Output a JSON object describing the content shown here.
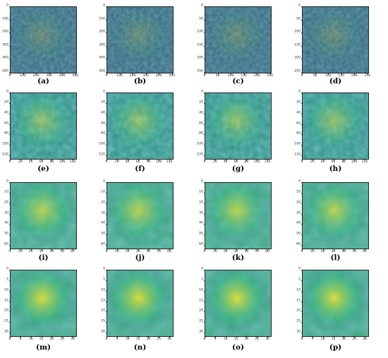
{
  "figure": {
    "rows": [
      {
        "ticks": [
          "0",
          "100",
          "200",
          "300",
          "400",
          "500"
        ],
        "range": 512,
        "blur": 0.3,
        "panels": [
          {
            "label": "(a)",
            "yticks": [
              "0",
              "100",
              "200",
              "300",
              "400",
              "500"
            ]
          },
          {
            "label": "(b)",
            "yticks": [
              "0",
              "100",
              "200",
              "300",
              "400",
              "500"
            ]
          },
          {
            "label": "(c)",
            "xticks": [
              "0",
              "50",
              "100",
              "150",
              "200",
              "250"
            ],
            "yticks": [
              "0",
              "50",
              "100",
              "150",
              "200",
              "250"
            ],
            "range": 256
          },
          {
            "label": "(d)",
            "xticks": [
              "0",
              "50",
              "100",
              "150",
              "200",
              "250"
            ],
            "yticks": [
              "0",
              "50",
              "100",
              "150",
              "200",
              "250"
            ],
            "range": 256
          }
        ]
      },
      {
        "ticks": [
          "0",
          "20",
          "40",
          "60",
          "80",
          "100",
          "120"
        ],
        "range": 128,
        "blur": 0.9,
        "panels": [
          {
            "label": "(e)"
          },
          {
            "label": "(f)"
          },
          {
            "label": "(g)"
          },
          {
            "label": "(h)"
          }
        ]
      },
      {
        "ticks": [
          "0",
          "10",
          "20",
          "30",
          "40",
          "50",
          "60"
        ],
        "range": 64,
        "blur": 2.0,
        "panels": [
          {
            "label": "(i)"
          },
          {
            "label": "(j)"
          },
          {
            "label": "(k)"
          },
          {
            "label": "(l)"
          }
        ]
      },
      {
        "ticks": [
          "0",
          "5",
          "10",
          "15",
          "20",
          "25",
          "30"
        ],
        "range": 32,
        "blur": 2.8,
        "panels": [
          {
            "label": "(m)"
          },
          {
            "label": "(n)"
          },
          {
            "label": "(o)"
          },
          {
            "label": "(p)"
          }
        ]
      }
    ],
    "colormap": "viridis",
    "colors": {
      "low": "#440154",
      "midlow": "#31688e",
      "mid": "#35b779",
      "high": "#fde725"
    }
  }
}
